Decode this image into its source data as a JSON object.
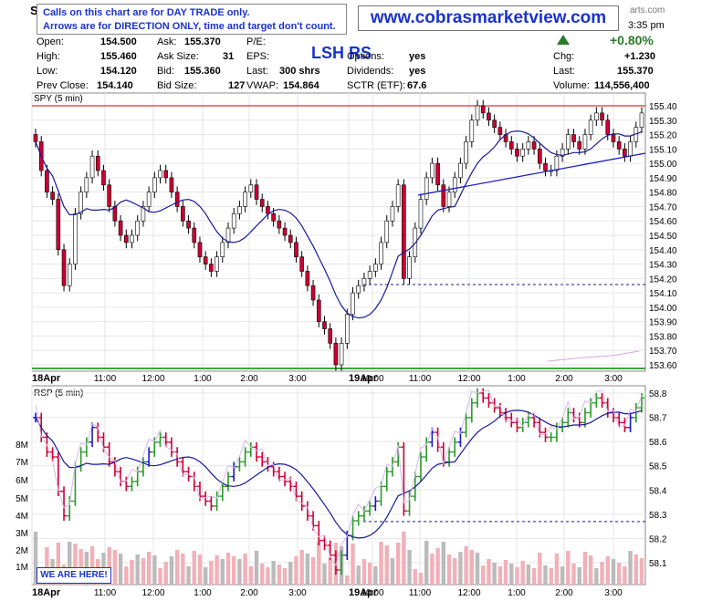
{
  "header": {
    "symbol_letter": "S",
    "brand_partial": "arts.com",
    "time": "3:35 pm",
    "change_pct": "+0.80%",
    "notice_line1": "Calls on this chart are for DAY TRADE only.",
    "notice_line2": "Arrows are for DIRECTION ONLY, time and target don't count.",
    "website": "www.cobrasmarketview.com",
    "overlay_symbol": "LSH RS",
    "quote": {
      "open_label": "Open:",
      "open": "154.500",
      "high_label": "High:",
      "high": "155.460",
      "low_label": "Low:",
      "low": "154.120",
      "prev_label": "Prev Close:",
      "prev": "154.140",
      "ask_label": "Ask:",
      "ask": "155.370",
      "asksize_label": "Ask Size:",
      "asksize": "31",
      "bid_label": "Bid:",
      "bid": "155.360",
      "bidsize_label": "Bid Size:",
      "bidsize": "127",
      "pe_label": "P/E:",
      "pe": "",
      "eps_label": "EPS:",
      "eps": "",
      "last_label": "Last:",
      "last_shrs": "300 shrs",
      "vwap_label": "VWAP:",
      "vwap": "154.864",
      "options_label": "Options:",
      "options": "yes",
      "dividends_label": "Dividends:",
      "dividends": "yes",
      "sctr_label": "SCTR (ETF):",
      "sctr": "67.6",
      "chg_label": "Chg:",
      "chg": "+1.230",
      "lastp_label": "Last:",
      "lastp": "155.370",
      "volume_label": "Volume:",
      "volume": "114,556,400"
    },
    "up_color": "#2a7a2a",
    "down_color": "#cc0033"
  },
  "badge": {
    "here_label": "WE ARE HERE!"
  },
  "chart_data": [
    {
      "type": "candlestick",
      "title": "SPY (5 min)",
      "ylim": [
        153.55,
        155.45
      ],
      "yticks": [
        "155.40",
        "155.30",
        "155.20",
        "155.10",
        "155.00",
        "154.90",
        "154.80",
        "154.70",
        "154.60",
        "154.50",
        "154.40",
        "154.30",
        "154.20",
        "154.10",
        "154.00",
        "153.90",
        "153.80",
        "153.70",
        "153.60"
      ],
      "xticks": [
        "18Apr",
        "11:00",
        "12:00",
        "1:00",
        "2:00",
        "3:00",
        "19Apr",
        "10:00",
        "11:00",
        "12:00",
        "1:00",
        "2:00",
        "3:00"
      ],
      "close": [
        155.15,
        154.95,
        154.8,
        154.75,
        154.4,
        154.15,
        154.3,
        154.65,
        154.8,
        154.9,
        155.05,
        154.95,
        154.85,
        154.7,
        154.6,
        154.5,
        154.45,
        154.5,
        154.6,
        154.7,
        154.8,
        154.9,
        154.95,
        154.9,
        154.8,
        154.7,
        154.6,
        154.55,
        154.45,
        154.35,
        154.3,
        154.25,
        154.35,
        154.45,
        154.55,
        154.65,
        154.7,
        154.8,
        154.85,
        154.75,
        154.7,
        154.65,
        154.6,
        154.55,
        154.5,
        154.45,
        154.35,
        154.25,
        154.15,
        154.05,
        153.9,
        153.85,
        153.75,
        153.6,
        153.75,
        153.95,
        154.1,
        154.15,
        154.2,
        154.25,
        154.3,
        154.45,
        154.6,
        154.7,
        154.85,
        154.2,
        154.35,
        154.55,
        154.75,
        154.9,
        155.0,
        154.85,
        154.7,
        154.8,
        154.9,
        155.0,
        155.15,
        155.3,
        155.4,
        155.35,
        155.3,
        155.25,
        155.2,
        155.15,
        155.1,
        155.05,
        155.1,
        155.15,
        155.1,
        155.0,
        154.95,
        154.95,
        155.05,
        155.1,
        155.2,
        155.15,
        155.1,
        155.2,
        155.3,
        155.35,
        155.3,
        155.2,
        155.15,
        155.1,
        155.05,
        155.15,
        155.25,
        155.35
      ],
      "overlays": [
        "20-period moving average",
        "trendline",
        "dashed support at 154.13"
      ],
      "upper_line": 155.4,
      "lower_line": 153.55
    },
    {
      "type": "bar_ohlc_with_volume",
      "title": "RSP (5 min)",
      "ylim": [
        58.05,
        58.85
      ],
      "yticks": [
        "58.8",
        "58.7",
        "58.6",
        "58.5",
        "58.4",
        "58.3",
        "58.2",
        "58.1"
      ],
      "volume_ticks": [
        "8M",
        "7M",
        "6M",
        "5M",
        "4M",
        "3M",
        "2M",
        "1M"
      ],
      "xticks": [
        "18Apr",
        "11:00",
        "12:00",
        "1:00",
        "2:00",
        "3:00",
        "19Apr",
        "10:00",
        "11:00",
        "12:00",
        "1:00",
        "2:00",
        "3:00"
      ],
      "colors": [
        "#cc0033",
        "#2a9a2a",
        "#1a1acc"
      ],
      "dashed_support": 58.27
    }
  ]
}
